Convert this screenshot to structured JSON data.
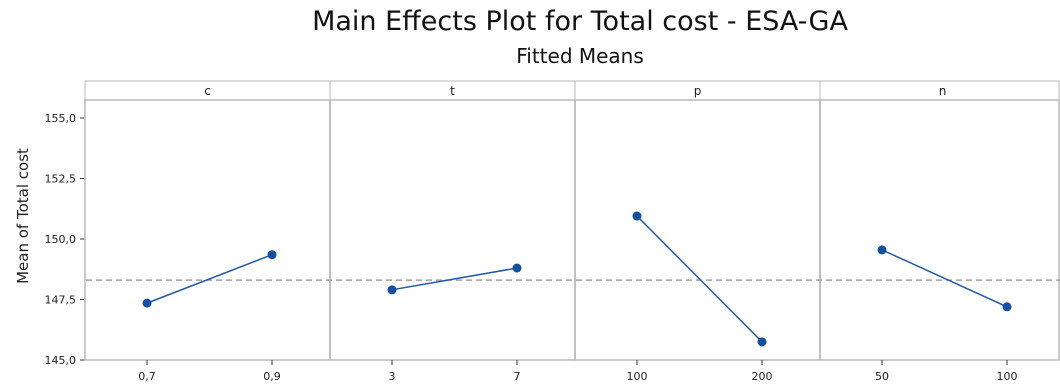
{
  "chart_data": {
    "type": "line",
    "title": "Main Effects Plot for Total cost - ESA-GA",
    "subtitle": "Fitted Means",
    "ylabel": "Mean of Total cost",
    "ylim": [
      145.0,
      156.0
    ],
    "yticks": [
      "145,0",
      "147,5",
      "150,0",
      "152,5",
      "155,0"
    ],
    "ytick_values": [
      145.0,
      147.5,
      150.0,
      152.5,
      155.0
    ],
    "reference_line": 148.3,
    "grid": false,
    "colors": {
      "series": "#1f5aa8",
      "point": "#1550a0",
      "reference": "#a0a0a0",
      "panel_border": "#b8b8b8",
      "strip_fill": "#ffffff"
    },
    "panels": [
      {
        "factor": "c",
        "levels": [
          "0,7",
          "0,9"
        ],
        "values": [
          147.35,
          149.35
        ]
      },
      {
        "factor": "t",
        "levels": [
          "3",
          "7"
        ],
        "values": [
          147.9,
          148.8
        ]
      },
      {
        "factor": "p",
        "levels": [
          "100",
          "200"
        ],
        "values": [
          150.95,
          145.75
        ]
      },
      {
        "factor": "n",
        "levels": [
          "50",
          "100"
        ],
        "values": [
          149.55,
          147.2
        ]
      }
    ]
  }
}
